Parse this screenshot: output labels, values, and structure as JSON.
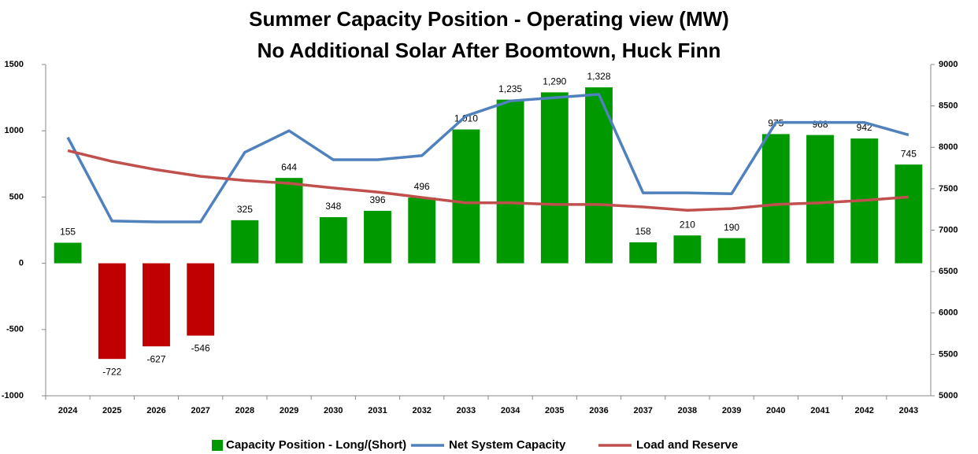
{
  "chart_data": {
    "type": "bar_line",
    "title": "Summer Capacity Position - Operating view (MW)",
    "subtitle": "No Additional Solar After Boomtown, Huck Finn",
    "categories": [
      "2024",
      "2025",
      "2026",
      "2027",
      "2028",
      "2029",
      "2030",
      "2031",
      "2032",
      "2033",
      "2034",
      "2035",
      "2036",
      "2037",
      "2038",
      "2039",
      "2040",
      "2041",
      "2042",
      "2043"
    ],
    "series": [
      {
        "name": "Capacity Position - Long/(Short)",
        "type": "bar",
        "color": "#009900",
        "negative_color": "#c00000",
        "values": [
          155,
          -722,
          -627,
          -546,
          325,
          644,
          348,
          396,
          496,
          1010,
          1235,
          1290,
          1328,
          158,
          210,
          190,
          975,
          968,
          942,
          745
        ],
        "value_labels": [
          "155",
          "-722",
          "-627",
          "-546",
          "325",
          "644",
          "348",
          "396",
          "496",
          "1,010",
          "1,235",
          "1,290",
          "1,328",
          "158",
          "210",
          "190",
          "975",
          "968",
          "942",
          "745"
        ]
      },
      {
        "name": "Net System Capacity",
        "type": "line",
        "axis": "y2",
        "color": "#4f81bd",
        "values": [
          8120,
          7110,
          7100,
          7100,
          7940,
          8200,
          7850,
          7850,
          7900,
          8380,
          8560,
          8600,
          8640,
          7450,
          7450,
          7440,
          8300,
          8300,
          8300,
          8150
        ]
      },
      {
        "name": "Load and Reserve",
        "type": "line",
        "axis": "y2",
        "color": "#c0504d",
        "values": [
          7960,
          7830,
          7730,
          7650,
          7600,
          7565,
          7510,
          7460,
          7395,
          7330,
          7330,
          7310,
          7310,
          7280,
          7240,
          7260,
          7310,
          7330,
          7360,
          7400
        ]
      }
    ],
    "ylim": [
      -1000,
      1500
    ],
    "yticks": [
      -1000,
      -500,
      0,
      500,
      1000,
      1500
    ],
    "y2lim": [
      5000,
      9000
    ],
    "y2ticks": [
      5000,
      5500,
      6000,
      6500,
      7000,
      7500,
      8000,
      8500,
      9000
    ],
    "grid": false,
    "legend": "bottom"
  }
}
